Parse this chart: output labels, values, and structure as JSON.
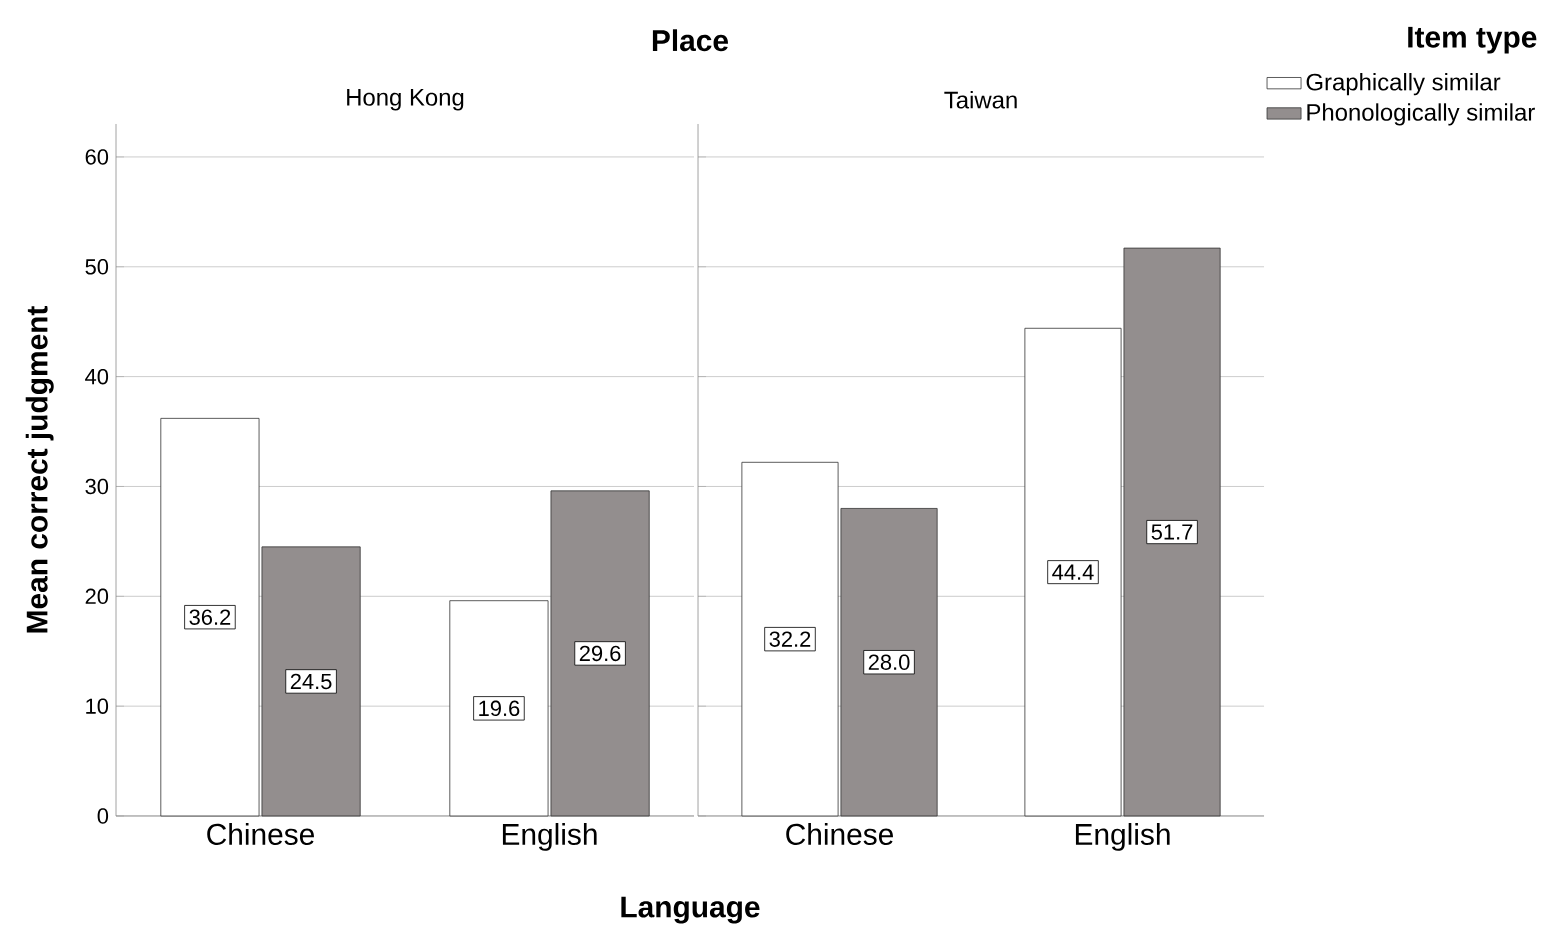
{
  "chart_data": [
    {
      "type": "bar",
      "title": "Place",
      "subtitle": "Hong Kong",
      "xlabel": "Language",
      "ylabel": "Mean correct judgment",
      "legend_title": "Item type",
      "categories": [
        "Chinese",
        "English"
      ],
      "series": [
        {
          "name": "Graphically similar",
          "color": "#ffffff",
          "values": [
            36.2,
            19.6
          ],
          "value_labels": [
            "36.2",
            "19.6"
          ]
        },
        {
          "name": "Phonologically similar",
          "color": "#938e8e",
          "values": [
            24.5,
            29.6
          ],
          "value_labels": [
            "24.5",
            "29.6"
          ]
        }
      ],
      "ylim": [
        0,
        63
      ],
      "yticks": [
        0,
        10,
        20,
        30,
        40,
        50,
        60
      ],
      "grid": "y",
      "legend": "right"
    },
    {
      "type": "bar",
      "subtitle": "Taiwan",
      "categories": [
        "Chinese",
        "English"
      ],
      "series": [
        {
          "color": "#ffffff",
          "values": [
            32.2,
            44.4
          ],
          "value_labels": [
            "32.2",
            "44.4"
          ]
        },
        {
          "color": "#938e8e",
          "values": [
            28.0,
            51.7
          ],
          "value_labels": [
            "28.0",
            "51.7"
          ]
        }
      ],
      "ylim": [
        0,
        63
      ],
      "yticks": [
        0,
        10,
        20,
        30,
        40,
        50,
        60
      ],
      "grid": "y",
      "tick_labels": "x"
    }
  ]
}
